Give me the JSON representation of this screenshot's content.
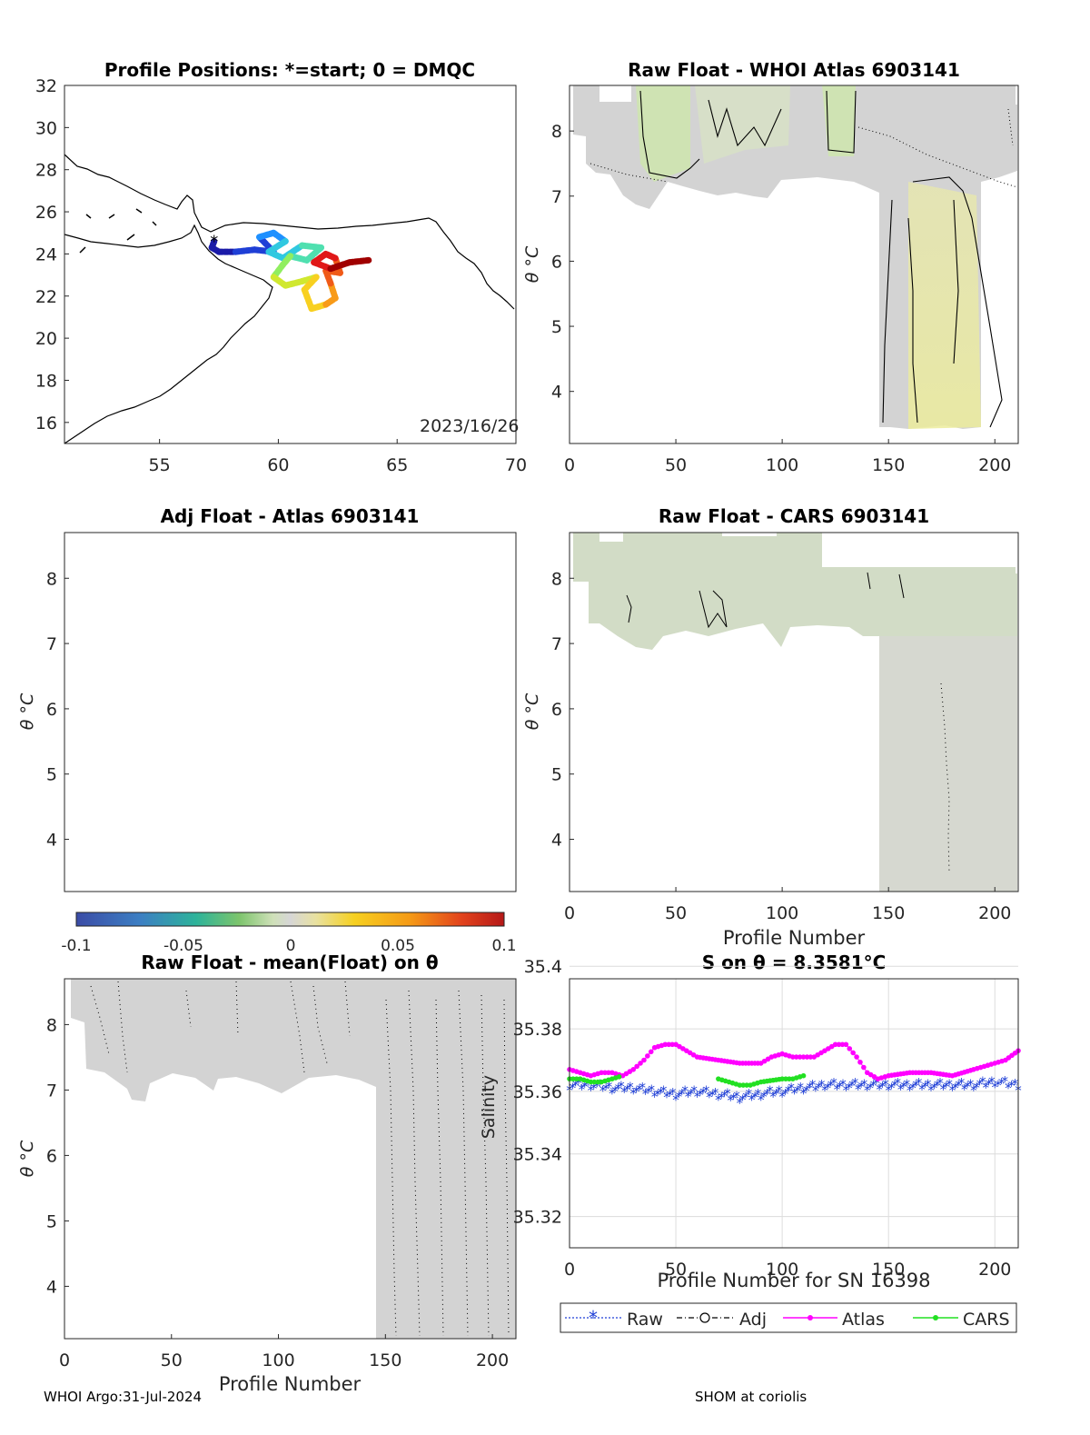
{
  "footer": {
    "left": "WHOI Argo:31-Jul-2024",
    "right": "SHOM at coriolis"
  },
  "colorbar": {
    "ticks": [
      "-0.1",
      "-0.05",
      "0",
      "0.05",
      "0.1"
    ],
    "range": [
      -0.1,
      0.1
    ],
    "colormap": "parula-like diverging"
  },
  "chart_data": [
    {
      "id": "map",
      "type": "scatter",
      "title": "Profile Positions: *=start; 0 = DMQC",
      "xlim": [
        51,
        70
      ],
      "ylim": [
        15,
        32
      ],
      "xticks": [
        "55",
        "60",
        "65",
        "70"
      ],
      "yticks": [
        "16",
        "18",
        "20",
        "22",
        "24",
        "26",
        "28",
        "30",
        "32"
      ],
      "annotation": "2023/16/26",
      "track": [
        [
          57.3,
          24.6
        ],
        [
          57.2,
          24.3
        ],
        [
          57.5,
          24.1
        ],
        [
          58.2,
          24.1
        ],
        [
          59.0,
          24.2
        ],
        [
          59.8,
          24.1
        ],
        [
          59.2,
          24.8
        ],
        [
          59.8,
          25.0
        ],
        [
          60.3,
          24.6
        ],
        [
          59.6,
          24.1
        ],
        [
          60.2,
          23.8
        ],
        [
          61.0,
          24.4
        ],
        [
          61.8,
          24.3
        ],
        [
          61.2,
          23.7
        ],
        [
          60.5,
          23.9
        ],
        [
          60.2,
          23.5
        ],
        [
          59.8,
          22.9
        ],
        [
          60.3,
          22.5
        ],
        [
          61.0,
          22.7
        ],
        [
          61.6,
          22.9
        ],
        [
          61.1,
          22.3
        ],
        [
          61.4,
          21.4
        ],
        [
          62.0,
          21.6
        ],
        [
          62.4,
          21.9
        ],
        [
          62.2,
          22.6
        ],
        [
          62.0,
          23.2
        ],
        [
          62.6,
          23.1
        ],
        [
          62.4,
          23.8
        ],
        [
          62.0,
          24.0
        ],
        [
          61.5,
          23.6
        ],
        [
          62.2,
          23.3
        ],
        [
          63.0,
          23.6
        ],
        [
          63.8,
          23.7
        ]
      ]
    },
    {
      "id": "raw-atlas",
      "type": "heatmap",
      "title": "Raw Float - WHOI Atlas  6903141",
      "xlabel": "",
      "ylabel": "θ °C",
      "xlim": [
        0,
        211
      ],
      "ylim": [
        3.2,
        8.7
      ],
      "xticks": [
        "0",
        "50",
        "100",
        "150",
        "200"
      ],
      "yticks": [
        "4",
        "5",
        "6",
        "7",
        "8"
      ]
    },
    {
      "id": "adj-atlas",
      "type": "heatmap",
      "title": "Adj Float - Atlas  6903141",
      "xlabel": "",
      "ylabel": "θ °C",
      "xlim": [
        0,
        211
      ],
      "ylim": [
        3.2,
        8.7
      ],
      "yticks": [
        "4",
        "5",
        "6",
        "7",
        "8"
      ]
    },
    {
      "id": "raw-cars",
      "type": "heatmap",
      "title": "Raw Float - CARS  6903141",
      "xlabel": "Profile Number",
      "ylabel": "θ °C",
      "xlim": [
        0,
        211
      ],
      "ylim": [
        3.2,
        8.7
      ],
      "xticks": [
        "0",
        "50",
        "100",
        "150",
        "200"
      ],
      "yticks": [
        "4",
        "5",
        "6",
        "7",
        "8"
      ]
    },
    {
      "id": "raw-mean",
      "type": "heatmap",
      "title": "Raw Float - mean(Float) on θ",
      "xlabel": "Profile Number",
      "ylabel": "θ °C",
      "xlim": [
        0,
        211
      ],
      "ylim": [
        3.2,
        8.7
      ],
      "xticks": [
        "0",
        "50",
        "100",
        "150",
        "200"
      ],
      "yticks": [
        "4",
        "5",
        "6",
        "7",
        "8"
      ]
    },
    {
      "id": "salinity",
      "type": "line",
      "title": "S on θ = 8.3581°C",
      "xlabel": "Profile Number for SN 16398",
      "ylabel": "Salinity",
      "xlim": [
        0,
        211
      ],
      "ylim": [
        35.31,
        35.396
      ],
      "xticks": [
        "0",
        "50",
        "100",
        "150",
        "200"
      ],
      "yticks": [
        "35.32",
        "35.34",
        "35.36",
        "35.38",
        "35.4"
      ],
      "ytick_values": [
        35.32,
        35.34,
        35.36,
        35.38,
        35.4
      ],
      "legend": [
        "Raw",
        "Adj",
        "Atlas",
        "CARS"
      ],
      "legend_position": "bottom",
      "grid": true,
      "series": [
        {
          "name": "Raw",
          "color": "#1f3fd6",
          "marker": "asterisk",
          "x": [
            0,
            10,
            20,
            30,
            40,
            50,
            60,
            70,
            80,
            90,
            100,
            110,
            120,
            130,
            140,
            150,
            160,
            170,
            180,
            190,
            200,
            211
          ],
          "y": [
            35.362,
            35.362,
            35.361,
            35.361,
            35.36,
            35.359,
            35.36,
            35.359,
            35.358,
            35.359,
            35.36,
            35.361,
            35.362,
            35.362,
            35.362,
            35.362,
            35.362,
            35.362,
            35.362,
            35.362,
            35.363,
            35.362
          ]
        },
        {
          "name": "Atlas",
          "color": "#ff00ff",
          "marker": "dot",
          "x": [
            0,
            5,
            10,
            15,
            20,
            25,
            30,
            35,
            40,
            45,
            50,
            55,
            60,
            70,
            80,
            90,
            95,
            100,
            105,
            110,
            115,
            120,
            125,
            130,
            135,
            140,
            145,
            150,
            160,
            170,
            180,
            190,
            195,
            200,
            205,
            211
          ],
          "y": [
            35.367,
            35.366,
            35.365,
            35.366,
            35.366,
            35.365,
            35.367,
            35.37,
            35.374,
            35.375,
            35.375,
            35.373,
            35.371,
            35.37,
            35.369,
            35.369,
            35.371,
            35.372,
            35.371,
            35.371,
            35.371,
            35.373,
            35.375,
            35.375,
            35.371,
            35.366,
            35.364,
            35.365,
            35.366,
            35.366,
            35.365,
            35.367,
            35.368,
            35.369,
            35.37,
            35.373
          ]
        },
        {
          "name": "CARS",
          "color": "#22e022",
          "marker": "dot",
          "x": [
            0,
            5,
            10,
            15,
            20,
            25,
            70,
            75,
            80,
            85,
            90,
            100,
            105,
            110
          ],
          "y": [
            35.364,
            35.364,
            35.363,
            35.363,
            35.364,
            35.365,
            35.364,
            35.363,
            35.362,
            35.362,
            35.363,
            35.364,
            35.364,
            35.365
          ]
        }
      ]
    }
  ]
}
